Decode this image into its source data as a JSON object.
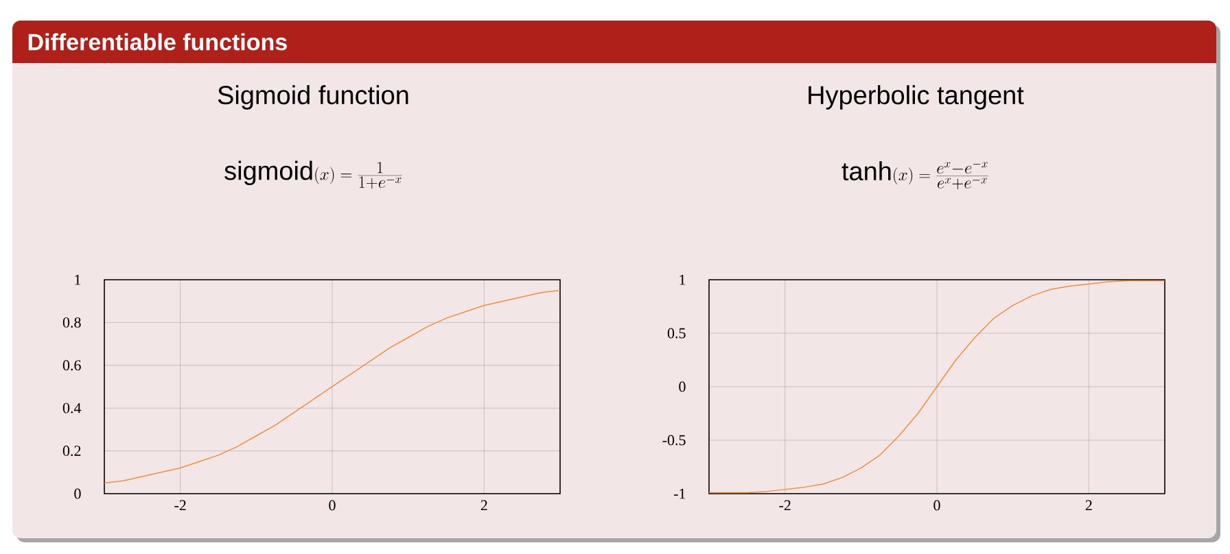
{
  "chart_data": [
    {
      "type": "other",
      "title": "Differentiable functions"
    },
    {
      "type": "line",
      "title": "Sigmoid function",
      "subtitle": "\\mathrm{sigmoid}(x) = \\frac{1}{1+e^{-x}}",
      "x": [
        -3,
        -2.75,
        -2.5,
        -2.25,
        -2,
        -1.75,
        -1.5,
        -1.25,
        -1,
        -0.75,
        -0.5,
        -0.25,
        0,
        0.25,
        0.5,
        0.75,
        1,
        1.25,
        1.5,
        1.75,
        2,
        2.25,
        2.5,
        2.75,
        3
      ],
      "series": [
        {
          "color": "#f28e3c",
          "values": [
            0.05,
            0.06,
            0.08,
            0.1,
            0.12,
            0.15,
            0.18,
            0.22,
            0.27,
            0.32,
            0.38,
            0.44,
            0.5,
            0.56,
            0.62,
            0.68,
            0.73,
            0.78,
            0.82,
            0.85,
            0.88,
            0.9,
            0.92,
            0.94,
            0.95
          ]
        }
      ],
      "xlim": [
        -3,
        3
      ],
      "ylim": [
        0,
        1
      ],
      "xticks": [
        -2,
        0,
        2
      ],
      "yticks": [
        0,
        0.2,
        0.4,
        0.6,
        0.8,
        1
      ],
      "grid": true
    },
    {
      "type": "line",
      "title": "Hyperbolic tangent",
      "subtitle": "\\tanh(x) = \\frac{e^{x}-e^{-x}}{e^{x}+e^{-x}}",
      "x": [
        -3,
        -2.75,
        -2.5,
        -2.25,
        -2,
        -1.75,
        -1.5,
        -1.25,
        -1,
        -0.75,
        -0.5,
        -0.25,
        0,
        0.25,
        0.5,
        0.75,
        1,
        1.25,
        1.5,
        1.75,
        2,
        2.25,
        2.5,
        2.75,
        3
      ],
      "series": [
        {
          "color": "#f28e3c",
          "values": [
            -0.99,
            -0.99,
            -0.99,
            -0.98,
            -0.96,
            -0.94,
            -0.91,
            -0.85,
            -0.76,
            -0.64,
            -0.46,
            -0.25,
            0,
            0.25,
            0.46,
            0.64,
            0.76,
            0.85,
            0.91,
            0.94,
            0.96,
            0.98,
            0.99,
            0.99,
            0.99
          ]
        }
      ],
      "xlim": [
        -3,
        3
      ],
      "ylim": [
        -1,
        1
      ],
      "xticks": [
        -2,
        0,
        2
      ],
      "yticks": [
        -1,
        -0.5,
        0,
        0.5,
        1
      ],
      "grid": true
    }
  ]
}
